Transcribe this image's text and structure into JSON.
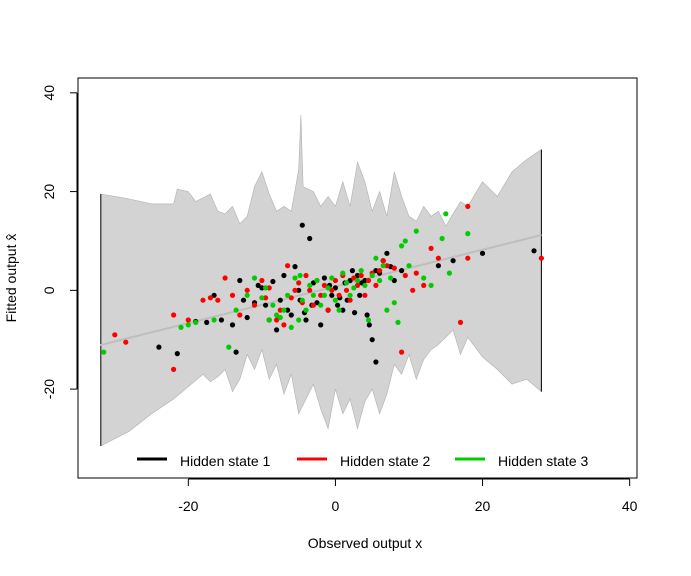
{
  "chart_data": {
    "type": "scatter",
    "title": "",
    "xlabel": "Observed output x",
    "ylabel": "Fitted output x̂",
    "xlim": [
      -35,
      41
    ],
    "ylim": [
      -38,
      43
    ],
    "x_ticks": [
      -20,
      0,
      20,
      40
    ],
    "y_ticks": [
      -20,
      0,
      20,
      40
    ],
    "x_tick_labels": [
      "-20",
      "0",
      "20",
      "40"
    ],
    "y_tick_labels": [
      "-20",
      "0",
      "20",
      "40"
    ],
    "grid": false,
    "legend_position": "bottom-inside",
    "fit_line": {
      "color": "#bebebe",
      "x": [
        -32,
        28
      ],
      "y": [
        -11.1,
        11.2
      ]
    },
    "band": {
      "color": "#d3d3d3",
      "upper": [
        [
          -31.9,
          19.5
        ],
        [
          -28,
          18.5
        ],
        [
          -25,
          17.5
        ],
        [
          -22,
          17.5
        ],
        [
          -21.5,
          20.5
        ],
        [
          -20,
          20
        ],
        [
          -19,
          18
        ],
        [
          -17,
          19.5
        ],
        [
          -16,
          16
        ],
        [
          -15,
          15.5
        ],
        [
          -14,
          17
        ],
        [
          -13,
          13.5
        ],
        [
          -12,
          15
        ],
        [
          -11,
          21
        ],
        [
          -10,
          24
        ],
        [
          -9,
          19.5
        ],
        [
          -8,
          16
        ],
        [
          -7,
          17
        ],
        [
          -6,
          16
        ],
        [
          -5,
          24.5
        ],
        [
          -4.7,
          35.5
        ],
        [
          -4.4,
          21
        ],
        [
          -3,
          20
        ],
        [
          -2,
          17
        ],
        [
          -1,
          19
        ],
        [
          0,
          17
        ],
        [
          1,
          22
        ],
        [
          2,
          17
        ],
        [
          3,
          26
        ],
        [
          4,
          22
        ],
        [
          5,
          16
        ],
        [
          6,
          20
        ],
        [
          7,
          15
        ],
        [
          8,
          24
        ],
        [
          9,
          19
        ],
        [
          10,
          15
        ],
        [
          11,
          14
        ],
        [
          12,
          17
        ],
        [
          13,
          15
        ],
        [
          14,
          16
        ],
        [
          15,
          13
        ],
        [
          16,
          15.5
        ],
        [
          17,
          18
        ],
        [
          18,
          17
        ],
        [
          20,
          22
        ],
        [
          22,
          19
        ],
        [
          24,
          24
        ],
        [
          26,
          26.5
        ],
        [
          28,
          28.5
        ]
      ],
      "lower": [
        [
          28,
          -20.5
        ],
        [
          26,
          -18
        ],
        [
          24,
          -19
        ],
        [
          22,
          -16
        ],
        [
          20,
          -13.5
        ],
        [
          18,
          -9.5
        ],
        [
          17,
          -13
        ],
        [
          16,
          -8
        ],
        [
          15,
          -9.5
        ],
        [
          14,
          -11
        ],
        [
          13,
          -12
        ],
        [
          12,
          -14
        ],
        [
          11,
          -18
        ],
        [
          10,
          -13
        ],
        [
          9,
          -17
        ],
        [
          8,
          -15
        ],
        [
          7,
          -21
        ],
        [
          6,
          -25
        ],
        [
          5,
          -20
        ],
        [
          4,
          -22.5
        ],
        [
          3,
          -28
        ],
        [
          2,
          -22
        ],
        [
          1,
          -25
        ],
        [
          0,
          -20
        ],
        [
          -1,
          -28
        ],
        [
          -2,
          -24
        ],
        [
          -3,
          -19
        ],
        [
          -4,
          -22
        ],
        [
          -5,
          -25
        ],
        [
          -6,
          -17
        ],
        [
          -7,
          -21
        ],
        [
          -8,
          -15
        ],
        [
          -9,
          -18
        ],
        [
          -10,
          -12
        ],
        [
          -11,
          -16
        ],
        [
          -12,
          -13
        ],
        [
          -13,
          -18
        ],
        [
          -14,
          -20.5
        ],
        [
          -15,
          -16
        ],
        [
          -16,
          -17.5
        ],
        [
          -17,
          -18.5
        ],
        [
          -18,
          -17
        ],
        [
          -20,
          -19.5
        ],
        [
          -22,
          -22
        ],
        [
          -25,
          -25
        ],
        [
          -28,
          -28.5
        ],
        [
          -31.9,
          -31.5
        ]
      ]
    },
    "series": [
      {
        "name": "Hidden state 1",
        "color": "#000000",
        "points": [
          [
            -24,
            -11.5
          ],
          [
            -21.5,
            -12.8
          ],
          [
            -19,
            -6.3
          ],
          [
            -17.5,
            -6.5
          ],
          [
            -16.5,
            -1
          ],
          [
            -15.5,
            -6
          ],
          [
            -14,
            -7
          ],
          [
            -13.5,
            -12.5
          ],
          [
            -13,
            2
          ],
          [
            -12.5,
            -2
          ],
          [
            -12,
            -5.5
          ],
          [
            -11,
            -2.5
          ],
          [
            -10.5,
            1
          ],
          [
            -10,
            0.5
          ],
          [
            -9.5,
            -3
          ],
          [
            -9,
            -6
          ],
          [
            -8.5,
            1.8
          ],
          [
            -8,
            -8
          ],
          [
            -7.5,
            -2
          ],
          [
            -7,
            3
          ],
          [
            -6.5,
            -4
          ],
          [
            -6,
            -5
          ],
          [
            -5.5,
            4.8
          ],
          [
            -5,
            0
          ],
          [
            -4.8,
            -2
          ],
          [
            -4.5,
            13.2
          ],
          [
            -4.2,
            -4.5
          ],
          [
            -4,
            -6
          ],
          [
            -3.5,
            10.5
          ],
          [
            -3.2,
            -3
          ],
          [
            -3,
            1.5
          ],
          [
            -2.5,
            -2.5
          ],
          [
            -2,
            -7
          ],
          [
            -1.5,
            2.5
          ],
          [
            -1,
            -4
          ],
          [
            -0.8,
            1
          ],
          [
            -0.5,
            -1
          ],
          [
            0,
            0.5
          ],
          [
            0.3,
            -3
          ],
          [
            0.6,
            -1.5
          ],
          [
            1,
            -4
          ],
          [
            1.3,
            1.5
          ],
          [
            1.6,
            -2
          ],
          [
            2,
            2
          ],
          [
            2.3,
            4
          ],
          [
            2.6,
            -4.5
          ],
          [
            3,
            3
          ],
          [
            3.3,
            -1
          ],
          [
            3.6,
            1.5
          ],
          [
            4,
            2
          ],
          [
            4.3,
            -5
          ],
          [
            4.6,
            -7
          ],
          [
            5,
            -10
          ],
          [
            5.5,
            4
          ],
          [
            5.5,
            -14.5
          ],
          [
            6,
            3.5
          ],
          [
            6.5,
            6
          ],
          [
            7,
            7.5
          ],
          [
            7.5,
            4.8
          ],
          [
            8,
            2
          ],
          [
            9,
            4
          ],
          [
            14,
            5
          ],
          [
            16,
            6
          ],
          [
            20,
            7.5
          ],
          [
            27,
            8
          ]
        ]
      },
      {
        "name": "Hidden state 2",
        "color": "#ff0000",
        "points": [
          [
            -30,
            -9
          ],
          [
            -28.5,
            -10.5
          ],
          [
            -22,
            -5
          ],
          [
            -22,
            -16
          ],
          [
            -20,
            -6
          ],
          [
            -18,
            -2
          ],
          [
            -17,
            -1.5
          ],
          [
            -16,
            -2
          ],
          [
            -15,
            2.5
          ],
          [
            -14,
            -1
          ],
          [
            -13,
            -5
          ],
          [
            -12,
            0
          ],
          [
            -11,
            -3
          ],
          [
            -10,
            2
          ],
          [
            -9.5,
            -1.5
          ],
          [
            -9,
            0.5
          ],
          [
            -8,
            -6
          ],
          [
            -7.5,
            -4
          ],
          [
            -7,
            -7
          ],
          [
            -6.5,
            5
          ],
          [
            -6,
            -1.5
          ],
          [
            -5.5,
            0
          ],
          [
            -5,
            1.5
          ],
          [
            -4.5,
            -2.5
          ],
          [
            -4,
            3
          ],
          [
            -3.5,
            0
          ],
          [
            -3,
            -3
          ],
          [
            -2.5,
            2
          ],
          [
            -2,
            -1
          ],
          [
            -1.5,
            1
          ],
          [
            -1,
            -4
          ],
          [
            -0.5,
            0
          ],
          [
            0,
            2
          ],
          [
            0.5,
            -1
          ],
          [
            1,
            3
          ],
          [
            1.5,
            0
          ],
          [
            2,
            -2
          ],
          [
            2.5,
            2.5
          ],
          [
            3,
            1
          ],
          [
            3.5,
            3
          ],
          [
            4,
            -1
          ],
          [
            4.5,
            2
          ],
          [
            5,
            3.5
          ],
          [
            5.5,
            1
          ],
          [
            6,
            4
          ],
          [
            6.5,
            6
          ],
          [
            7,
            5
          ],
          [
            8,
            4.5
          ],
          [
            9,
            -12.5
          ],
          [
            9.5,
            3
          ],
          [
            10.5,
            0
          ],
          [
            11,
            3.5
          ],
          [
            12,
            1
          ],
          [
            13,
            8.5
          ],
          [
            14,
            6.5
          ],
          [
            17,
            -6.5
          ],
          [
            18,
            6.5
          ],
          [
            18,
            17
          ],
          [
            28,
            6.5
          ]
        ]
      },
      {
        "name": "Hidden state 3",
        "color": "#00cc00",
        "points": [
          [
            -31.5,
            -12.5
          ],
          [
            -21,
            -7.5
          ],
          [
            -20,
            -7
          ],
          [
            -19,
            -6.5
          ],
          [
            -16.5,
            -6
          ],
          [
            -14.5,
            -11.5
          ],
          [
            -13.5,
            -4
          ],
          [
            -12,
            -1
          ],
          [
            -11,
            2.5
          ],
          [
            -10,
            -1.5
          ],
          [
            -9.5,
            0.5
          ],
          [
            -9,
            -6
          ],
          [
            -8.5,
            -3
          ],
          [
            -8,
            -5
          ],
          [
            -7.5,
            -5.5
          ],
          [
            -7,
            -4
          ],
          [
            -6.5,
            -1
          ],
          [
            -6,
            -7.5
          ],
          [
            -5.5,
            2.5
          ],
          [
            -5,
            -6
          ],
          [
            -4.8,
            3
          ],
          [
            -4.5,
            -2
          ],
          [
            -4,
            -4
          ],
          [
            -3.5,
            1
          ],
          [
            -3,
            -1
          ],
          [
            -2.5,
            2
          ],
          [
            -2,
            -3
          ],
          [
            -1.5,
            -1
          ],
          [
            -1,
            0.5
          ],
          [
            -0.5,
            2.5
          ],
          [
            0,
            -2
          ],
          [
            0.5,
            -4
          ],
          [
            1,
            3.5
          ],
          [
            1.5,
            1.5
          ],
          [
            2,
            -1
          ],
          [
            2.5,
            0.5
          ],
          [
            3,
            2
          ],
          [
            3.5,
            4
          ],
          [
            4,
            1
          ],
          [
            4.5,
            -6
          ],
          [
            5,
            3
          ],
          [
            5.5,
            6.5
          ],
          [
            6,
            2
          ],
          [
            6.5,
            5
          ],
          [
            7,
            -4
          ],
          [
            7.5,
            2.5
          ],
          [
            8,
            -2.5
          ],
          [
            8.5,
            -6.5
          ],
          [
            9,
            9
          ],
          [
            9.5,
            10
          ],
          [
            10,
            5
          ],
          [
            11,
            12
          ],
          [
            12,
            2.5
          ],
          [
            13,
            1
          ],
          [
            14.5,
            10.5
          ],
          [
            15,
            15.5
          ],
          [
            15.5,
            3.5
          ],
          [
            18,
            11.5
          ]
        ]
      }
    ]
  }
}
